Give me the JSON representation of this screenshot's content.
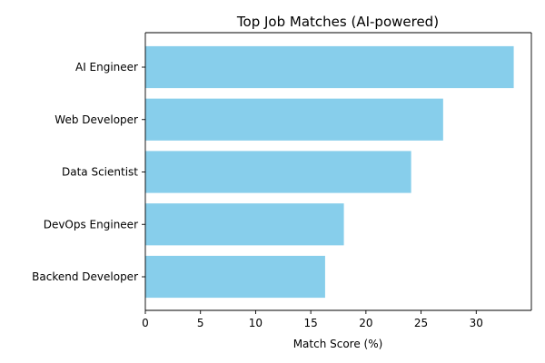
{
  "chart_data": {
    "type": "bar",
    "orientation": "horizontal",
    "title": "Top Job Matches (AI-powered)",
    "xlabel": "Match Score (%)",
    "ylabel": "",
    "categories": [
      "AI Engineer",
      "Web Developer",
      "Data Scientist",
      "DevOps Engineer",
      "Backend Developer"
    ],
    "values": [
      33.4,
      27.0,
      24.1,
      18.0,
      16.3
    ],
    "xlim": [
      0,
      35
    ],
    "xticks": [
      0,
      5,
      10,
      15,
      20,
      25,
      30
    ],
    "bar_color": "#87ceeb",
    "grid": false,
    "legend": "none"
  }
}
